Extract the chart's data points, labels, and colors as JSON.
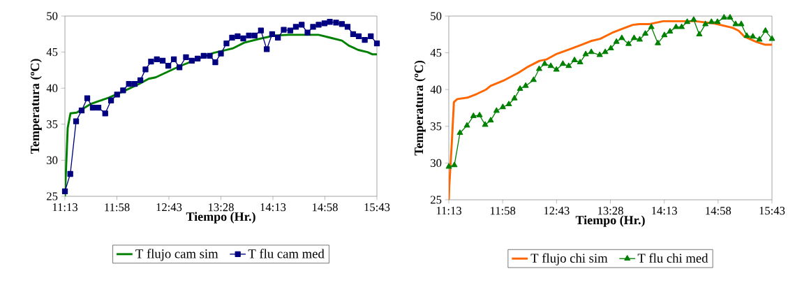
{
  "chart_data": [
    {
      "type": "line",
      "xlabel": "Tiempo (Hr.)",
      "ylabel": "Temperatura (ºC)",
      "legend": "bottom",
      "grid": false,
      "xlim": [
        11.2167,
        15.717
      ],
      "xticks": [
        {
          "value": 11.2167,
          "label": "11:13"
        },
        {
          "value": 11.9667,
          "label": "11:58"
        },
        {
          "value": 12.7167,
          "label": "12:43"
        },
        {
          "value": 13.4667,
          "label": "13:28"
        },
        {
          "value": 14.2167,
          "label": "14:13"
        },
        {
          "value": 14.9667,
          "label": "14:58"
        },
        {
          "value": 15.717,
          "label": "15:43"
        }
      ],
      "ylim": [
        25,
        50
      ],
      "yticks": [
        25,
        30,
        35,
        40,
        45,
        50
      ],
      "series": [
        {
          "name": "T flujo cam sim",
          "color": "#008000",
          "marker": "none",
          "x": [
            11.217,
            11.257,
            11.297,
            11.385,
            11.586,
            11.855,
            12.09,
            12.291,
            12.425,
            12.526,
            12.661,
            12.862,
            13.097,
            13.366,
            13.634,
            13.802,
            14.004,
            14.239,
            14.44,
            14.877,
            15.045,
            15.212,
            15.313,
            15.448,
            15.582,
            15.649,
            15.717
          ],
          "values": [
            25.0,
            34.5,
            36.5,
            36.6,
            37.8,
            38.7,
            39.7,
            40.6,
            41.3,
            41.5,
            42.1,
            43.0,
            43.9,
            44.9,
            45.5,
            46.3,
            46.8,
            47.3,
            47.4,
            47.4,
            47.0,
            46.6,
            45.9,
            45.3,
            45.0,
            44.7,
            44.7
          ]
        },
        {
          "name": "T flu cam med",
          "color": "#000080",
          "marker": "square",
          "x": [
            11.217,
            11.294,
            11.378,
            11.458,
            11.539,
            11.619,
            11.7,
            11.798,
            11.882,
            11.969,
            12.056,
            12.14,
            12.224,
            12.305,
            12.379,
            12.459,
            12.543,
            12.627,
            12.708,
            12.788,
            12.869,
            12.963,
            13.047,
            13.131,
            13.218,
            13.306,
            13.386,
            13.467,
            13.547,
            13.628,
            13.708,
            13.789,
            13.871,
            13.953,
            14.044,
            14.128,
            14.206,
            14.289,
            14.373,
            14.468,
            14.548,
            14.632,
            14.716,
            14.796,
            14.877,
            14.961,
            15.038,
            15.128,
            15.212,
            15.294,
            15.374,
            15.455,
            15.542,
            15.629,
            15.717
          ],
          "values": [
            25.7,
            28.1,
            35.4,
            36.9,
            38.6,
            37.3,
            37.3,
            36.5,
            38.3,
            39.1,
            39.7,
            40.6,
            40.6,
            41.1,
            42.6,
            43.7,
            44.0,
            43.8,
            43.1,
            44.0,
            42.9,
            44.3,
            43.8,
            44.1,
            44.5,
            44.5,
            43.6,
            44.8,
            46.2,
            47.0,
            47.2,
            46.9,
            47.3,
            47.3,
            48.0,
            45.4,
            47.5,
            47.0,
            48.1,
            48.0,
            48.5,
            48.8,
            47.7,
            48.5,
            48.8,
            49.0,
            49.2,
            49.1,
            48.9,
            48.5,
            47.5,
            47.2,
            46.7,
            47.2,
            46.2
          ]
        }
      ]
    },
    {
      "type": "line",
      "xlabel": "Tiempo (Hr.)",
      "ylabel": "Temperatura (ºC)",
      "legend": "bottom",
      "grid": false,
      "xlim": [
        11.2167,
        15.717
      ],
      "xticks": [
        {
          "value": 11.2167,
          "label": "11:13"
        },
        {
          "value": 11.9667,
          "label": "11:58"
        },
        {
          "value": 12.7167,
          "label": "12:43"
        },
        {
          "value": 13.4667,
          "label": "13:28"
        },
        {
          "value": 14.2167,
          "label": "14:13"
        },
        {
          "value": 14.9667,
          "label": "14:58"
        },
        {
          "value": 15.717,
          "label": "15:43"
        }
      ],
      "ylim": [
        25,
        50
      ],
      "yticks": [
        25,
        30,
        35,
        40,
        45,
        50
      ],
      "series": [
        {
          "name": "T flujo chi sim",
          "color": "#ff6600",
          "marker": "none",
          "x": [
            11.217,
            11.223,
            11.256,
            11.288,
            11.334,
            11.476,
            11.606,
            11.736,
            11.8,
            11.995,
            12.189,
            12.319,
            12.479,
            12.578,
            12.708,
            12.903,
            13.065,
            13.195,
            13.324,
            13.486,
            13.616,
            13.778,
            13.875,
            14.005,
            14.2,
            14.654,
            14.913,
            15.172,
            15.253,
            15.334,
            15.496,
            15.626,
            15.717
          ],
          "values": [
            25.0,
            26.8,
            32.3,
            38.3,
            38.7,
            38.9,
            39.4,
            40.0,
            40.5,
            41.3,
            42.3,
            43.1,
            43.9,
            44.1,
            44.8,
            45.5,
            46.1,
            46.6,
            46.9,
            47.7,
            48.2,
            48.8,
            48.9,
            48.9,
            49.3,
            49.3,
            49.0,
            48.4,
            48.0,
            47.2,
            46.5,
            46.1,
            46.1
          ]
        },
        {
          "name": "T flu chi med",
          "color": "#008000",
          "marker": "triangle",
          "x": [
            11.217,
            11.294,
            11.372,
            11.47,
            11.56,
            11.645,
            11.723,
            11.8,
            11.881,
            11.969,
            12.053,
            12.131,
            12.209,
            12.287,
            12.397,
            12.475,
            12.552,
            12.637,
            12.715,
            12.805,
            12.886,
            12.967,
            13.045,
            13.123,
            13.201,
            13.318,
            13.395,
            13.473,
            13.551,
            13.626,
            13.72,
            13.797,
            13.875,
            13.953,
            14.037,
            14.128,
            14.219,
            14.297,
            14.381,
            14.459,
            14.537,
            14.627,
            14.705,
            14.79,
            14.874,
            14.958,
            15.049,
            15.133,
            15.211,
            15.289,
            15.367,
            15.451,
            15.542,
            15.626,
            15.717
          ],
          "values": [
            29.5,
            29.7,
            34.1,
            35.1,
            36.4,
            36.5,
            35.2,
            35.8,
            37.1,
            37.6,
            38.0,
            38.8,
            40.1,
            40.5,
            41.3,
            42.8,
            43.5,
            43.2,
            42.7,
            43.5,
            43.2,
            44.0,
            43.7,
            44.8,
            45.1,
            44.7,
            45.1,
            45.6,
            46.5,
            47.0,
            46.2,
            47.0,
            46.8,
            47.6,
            48.5,
            46.3,
            47.4,
            47.9,
            48.5,
            48.5,
            49.2,
            49.5,
            47.5,
            48.9,
            49.2,
            49.2,
            49.8,
            49.8,
            48.9,
            48.9,
            47.3,
            47.2,
            46.8,
            48.0,
            46.9
          ]
        }
      ]
    }
  ]
}
